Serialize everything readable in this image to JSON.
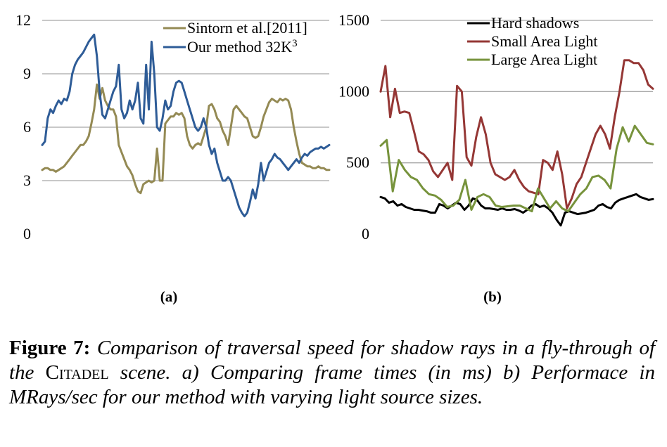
{
  "chart_data": [
    {
      "type": "line",
      "sublabel": "(a)",
      "ylim": [
        0,
        12
      ],
      "yticks": [
        "0",
        "3",
        "6",
        "9",
        "12"
      ],
      "grid": true,
      "legend_position": "top-right",
      "series": [
        {
          "name": "Sintorn et al.[2011]",
          "color": "#948a54",
          "values": [
            3.6,
            3.7,
            3.7,
            3.6,
            3.6,
            3.5,
            3.6,
            3.7,
            3.8,
            4.0,
            4.2,
            4.4,
            4.6,
            4.8,
            5.0,
            5.0,
            5.2,
            5.5,
            6.2,
            7.0,
            8.4,
            7.6,
            8.2,
            7.5,
            7.2,
            7.0,
            7.0,
            6.6,
            5.0,
            4.6,
            4.2,
            3.8,
            3.6,
            3.3,
            2.8,
            2.4,
            2.3,
            2.8,
            2.9,
            3.0,
            2.9,
            3.0,
            4.8,
            3.0,
            3.0,
            6.2,
            6.4,
            6.6,
            6.6,
            6.8,
            6.7,
            6.8,
            6.5,
            5.5,
            5.0,
            4.8,
            5.0,
            5.1,
            5.0,
            5.5,
            6.0,
            7.2,
            7.3,
            7.0,
            6.5,
            6.3,
            5.8,
            5.5,
            5.0,
            6.0,
            7.0,
            7.2,
            7.0,
            6.8,
            6.6,
            6.5,
            6.0,
            5.5,
            5.4,
            5.5,
            6.0,
            6.6,
            7.0,
            7.4,
            7.6,
            7.5,
            7.4,
            7.6,
            7.5,
            7.6,
            7.5,
            7.0,
            6.0,
            5.2,
            4.5,
            4.0,
            3.9,
            3.8,
            3.8,
            3.7,
            3.7,
            3.8,
            3.7,
            3.7,
            3.6,
            3.6
          ]
        },
        {
          "name": "Our method 32K",
          "name_sup": "3",
          "color": "#2e5c97",
          "values": [
            5.0,
            5.2,
            6.5,
            7.0,
            6.8,
            7.2,
            7.5,
            7.3,
            7.6,
            7.5,
            8.0,
            9.0,
            9.5,
            9.8,
            10.0,
            10.2,
            10.5,
            10.8,
            11.0,
            11.2,
            10.0,
            8.0,
            6.7,
            6.5,
            7.0,
            7.5,
            8.0,
            8.3,
            9.5,
            7.0,
            6.5,
            6.8,
            7.5,
            7.0,
            7.5,
            8.5,
            6.5,
            6.2,
            9.5,
            7.0,
            10.8,
            9.0,
            6.0,
            5.8,
            6.5,
            7.5,
            7.0,
            7.2,
            8.0,
            8.5,
            8.6,
            8.5,
            8.0,
            7.5,
            7.0,
            6.5,
            6.0,
            5.8,
            6.0,
            6.5,
            6.0,
            5.0,
            4.5,
            4.8,
            4.0,
            3.5,
            3.0,
            3.0,
            3.2,
            3.0,
            2.5,
            2.0,
            1.5,
            1.2,
            1.0,
            1.2,
            1.8,
            2.5,
            2.0,
            2.8,
            4.0,
            3.0,
            3.5,
            4.0,
            4.2,
            4.5,
            4.3,
            4.2,
            4.0,
            3.8,
            3.6,
            3.8,
            4.0,
            4.2,
            4.0,
            4.3,
            4.5,
            4.4,
            4.6,
            4.7,
            4.8,
            4.8,
            4.9,
            4.8,
            4.9,
            5.0
          ]
        }
      ]
    },
    {
      "type": "line",
      "sublabel": "(b)",
      "ylim": [
        0,
        1500
      ],
      "yticks": [
        "0",
        "500",
        "1000",
        "1500"
      ],
      "grid": true,
      "legend_position": "top-right",
      "series": [
        {
          "name": "Hard shadows",
          "color": "#000000",
          "values": [
            260,
            250,
            220,
            230,
            200,
            210,
            190,
            180,
            170,
            170,
            165,
            160,
            150,
            150,
            210,
            200,
            180,
            200,
            220,
            210,
            170,
            200,
            250,
            240,
            200,
            180,
            180,
            175,
            170,
            180,
            170,
            170,
            175,
            165,
            150,
            170,
            200,
            210,
            190,
            200,
            180,
            150,
            100,
            60,
            150,
            160,
            150,
            140,
            145,
            150,
            160,
            170,
            200,
            210,
            190,
            180,
            220,
            240,
            250,
            260,
            270,
            280,
            260,
            250,
            240,
            245
          ]
        },
        {
          "name": "Small Area Light",
          "color": "#953735",
          "values": [
            1000,
            1180,
            820,
            1020,
            850,
            860,
            850,
            720,
            580,
            560,
            520,
            440,
            400,
            450,
            500,
            380,
            1040,
            1000,
            540,
            480,
            680,
            820,
            700,
            500,
            420,
            400,
            380,
            400,
            450,
            380,
            330,
            300,
            290,
            280,
            520,
            500,
            450,
            580,
            420,
            180,
            250,
            350,
            400,
            500,
            600,
            700,
            760,
            700,
            600,
            820,
            1000,
            1220,
            1220,
            1200,
            1200,
            1150,
            1050,
            1020
          ]
        },
        {
          "name": "Large Area Light",
          "color": "#77933c",
          "values": [
            620,
            660,
            300,
            520,
            450,
            400,
            380,
            320,
            280,
            270,
            240,
            190,
            200,
            240,
            380,
            170,
            260,
            280,
            260,
            200,
            190,
            195,
            200,
            200,
            180,
            160,
            320,
            250,
            180,
            230,
            180,
            160,
            220,
            280,
            320,
            400,
            410,
            380,
            320,
            600,
            750,
            650,
            760,
            700,
            640,
            630
          ]
        }
      ]
    }
  ],
  "caption": {
    "label": "Figure 7:",
    "text_1": "Comparison of traversal speed for shadow rays in a fly-through of the",
    "scene_name": "Citadel",
    "text_2": "scene. a) Comparing frame times (in ms) b) Performace in MRays/sec for our method with varying light source sizes."
  }
}
